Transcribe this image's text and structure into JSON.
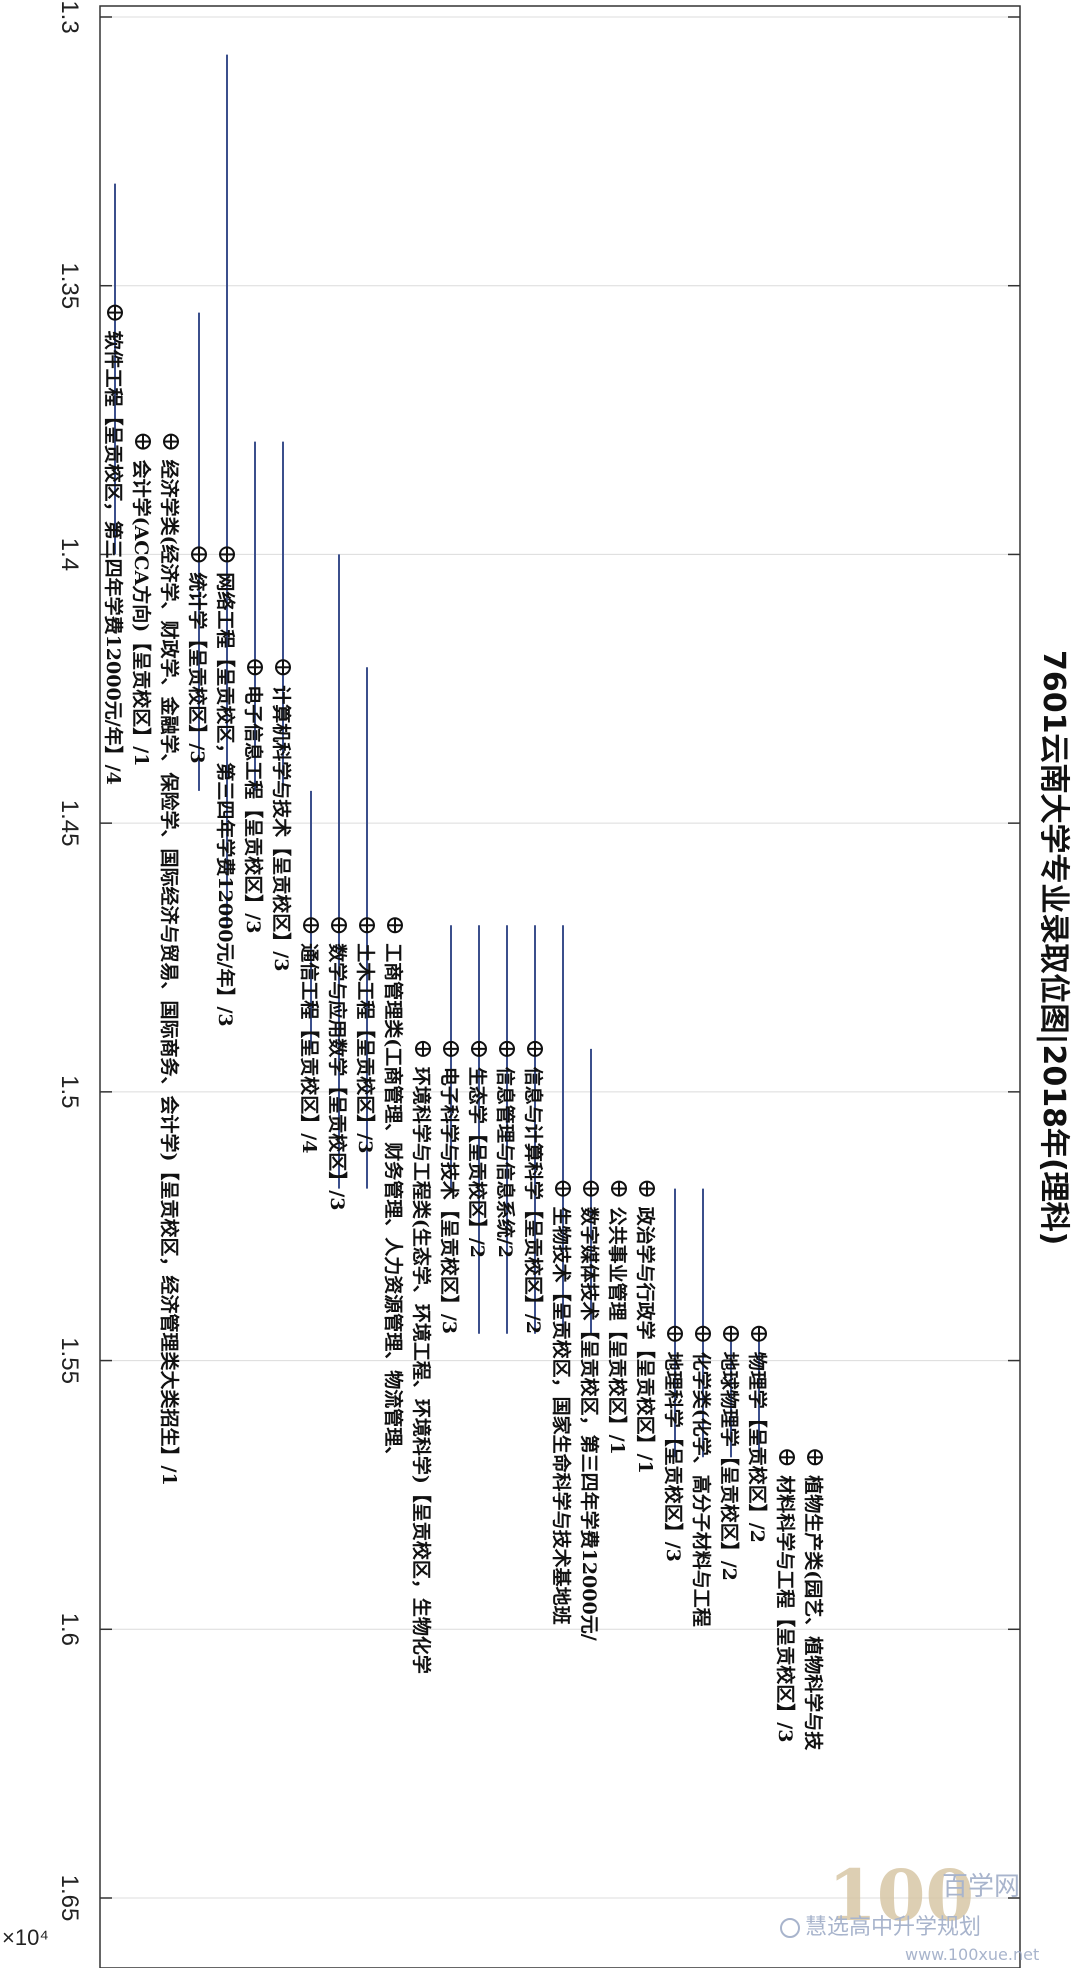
{
  "chart_data": {
    "type": "scatter",
    "title": "7601云南大学专业录取位图|2018年(理科)",
    "axis_multiplier": "×10⁴",
    "ylim": [
      1.3,
      1.68
    ],
    "yticks": [
      1.3,
      1.35,
      1.4,
      1.45,
      1.5,
      1.55,
      1.6,
      1.65
    ],
    "ytick_labels": [
      "1.3",
      "1.35",
      "1.4",
      "1.45",
      "1.5",
      "1.55",
      "1.6",
      "1.65"
    ],
    "grid": true,
    "marker": "circle-plus",
    "line_color": "#3b4f8c",
    "points": [
      {
        "label": "软件工程【呈贡校区，第三四年学费12000元/年】/4",
        "value": 1.355,
        "range": [
          1.331,
          1.4
        ]
      },
      {
        "label": "会计学(ACCA方向)【呈贡校区】/1",
        "value": 1.379,
        "range": null
      },
      {
        "label": "经济学类(经济学、财政学、金融学、保险学、国际经济与贸易、国际商务、会计学)【呈贡校区，经济管理类大类招生】/1",
        "value": 1.379,
        "range": null
      },
      {
        "label": "统计学【呈贡校区】/3",
        "value": 1.4,
        "range": [
          1.355,
          1.444
        ]
      },
      {
        "label": "网络工程【呈贡校区，第三四年学费12000元/年】/3",
        "value": 1.4,
        "range": [
          1.307,
          1.469
        ]
      },
      {
        "label": "电子信息工程【呈贡校区】/3",
        "value": 1.421,
        "range": [
          1.379,
          1.444
        ]
      },
      {
        "label": "计算机科学与技术【呈贡校区】/3",
        "value": 1.421,
        "range": [
          1.379,
          1.444
        ]
      },
      {
        "label": "通信工程【呈贡校区】/4",
        "value": 1.469,
        "range": [
          1.444,
          1.492
        ]
      },
      {
        "label": "数学与应用数学【呈贡校区】/3",
        "value": 1.469,
        "range": [
          1.4,
          1.518
        ]
      },
      {
        "label": "土木工程【呈贡校区】/3",
        "value": 1.469,
        "range": [
          1.421,
          1.518
        ]
      },
      {
        "label": "工商管理类(工商管理、财务管理、人力资源管理、物流管理、",
        "value": 1.469,
        "range": null
      },
      {
        "label": "环境科学与工程类(生态学、环境工程、环境科学)【呈贡校区，生物化学",
        "value": 1.492,
        "range": null
      },
      {
        "label": "电子科学与技术【呈贡校区】/3",
        "value": 1.492,
        "range": [
          1.469,
          1.518
        ]
      },
      {
        "label": "生态学【呈贡校区】/2",
        "value": 1.492,
        "range": [
          1.469,
          1.545
        ]
      },
      {
        "label": "信息管理与信息系统/2",
        "value": 1.492,
        "range": [
          1.469,
          1.545
        ]
      },
      {
        "label": "信息与计算科学【呈贡校区】/2",
        "value": 1.492,
        "range": [
          1.469,
          1.545
        ]
      },
      {
        "label": "生物技术【呈贡校区，国家生命科学与技术基地班",
        "value": 1.518,
        "range": [
          1.469,
          1.545
        ]
      },
      {
        "label": "数字媒体技术【呈贡校区，第三四年学费12000元/",
        "value": 1.518,
        "range": [
          1.492,
          1.545
        ]
      },
      {
        "label": "公共事业管理【呈贡校区】/1",
        "value": 1.518,
        "range": null
      },
      {
        "label": "政治学与行政学【呈贡校区】/1",
        "value": 1.518,
        "range": null
      },
      {
        "label": "地理科学【呈贡校区】/3",
        "value": 1.545,
        "range": [
          1.518,
          1.568
        ]
      },
      {
        "label": "化学类(化学、高分子材料与工程",
        "value": 1.545,
        "range": [
          1.518,
          1.568
        ]
      },
      {
        "label": "地球物理学【呈贡校区】/2",
        "value": 1.545,
        "range": [
          1.545,
          1.568
        ]
      },
      {
        "label": "物理学【呈贡校区】/2",
        "value": 1.545,
        "range": [
          1.545,
          1.568
        ]
      },
      {
        "label": "材料科学与工程【呈贡校区】/3",
        "value": 1.568,
        "range": null
      },
      {
        "label": "植物生产类(园艺、植物科学与技",
        "value": 1.568,
        "range": null
      }
    ]
  },
  "watermark": {
    "logo_digits": "100",
    "brand": "百学网",
    "wechat": "慧选高中升学规划",
    "url": "www.100xue.net"
  }
}
